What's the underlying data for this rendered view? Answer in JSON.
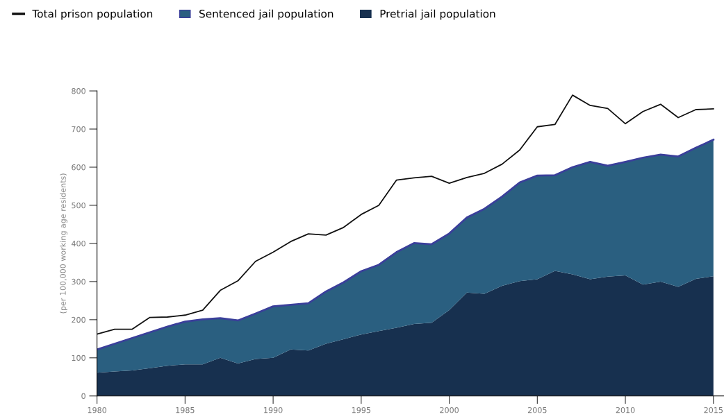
{
  "chart_data": {
    "type": "area",
    "ylabel": "(per 100,000 working age residents)",
    "x": [
      1980,
      1981,
      1982,
      1983,
      1984,
      1985,
      1986,
      1987,
      1988,
      1989,
      1990,
      1991,
      1992,
      1993,
      1994,
      1995,
      1996,
      1997,
      1998,
      1999,
      2000,
      2001,
      2002,
      2003,
      2004,
      2005,
      2006,
      2007,
      2008,
      2009,
      2010,
      2011,
      2012,
      2013,
      2014,
      2015
    ],
    "stacked": true,
    "series": [
      {
        "name": "Pretrial jail population",
        "color": "#17304f",
        "values": [
          61,
          64,
          67,
          73,
          79,
          83,
          83,
          100,
          85,
          97,
          100,
          122,
          119,
          137,
          149,
          161,
          170,
          179,
          189,
          192,
          225,
          271,
          268,
          289,
          301,
          306,
          328,
          319,
          306,
          313,
          316,
          292,
          300,
          286,
          307,
          314
        ]
      },
      {
        "name": "Sentenced jail population",
        "color": "#2a5f80",
        "values": [
          61,
          73,
          85,
          94,
          103,
          112,
          118,
          104,
          113,
          119,
          135,
          117,
          124,
          137,
          149,
          166,
          174,
          198,
          212,
          206,
          201,
          197,
          223,
          234,
          259,
          272,
          251,
          281,
          308,
          291,
          298,
          333,
          333,
          342,
          344,
          358
        ]
      },
      {
        "name": "Total prison population",
        "type": "line",
        "color": "#111111",
        "values": [
          162,
          175,
          175,
          206,
          207,
          212,
          225,
          277,
          302,
          353,
          377,
          405,
          425,
          422,
          442,
          476,
          500,
          566,
          572,
          576,
          558,
          573,
          584,
          608,
          645,
          706,
          712,
          789,
          762,
          754,
          714,
          746,
          765,
          730,
          751,
          753
        ]
      }
    ],
    "xlim": [
      1980,
      2015.6
    ],
    "xticks": [
      1980,
      1985,
      1990,
      1995,
      2000,
      2005,
      2010,
      2015
    ],
    "ylim": [
      0,
      800
    ],
    "yticks": [
      0,
      100,
      200,
      300,
      400,
      500,
      600,
      700,
      800
    ],
    "grid": false,
    "legend": "top left",
    "marker": "none",
    "line_style": "solid"
  }
}
